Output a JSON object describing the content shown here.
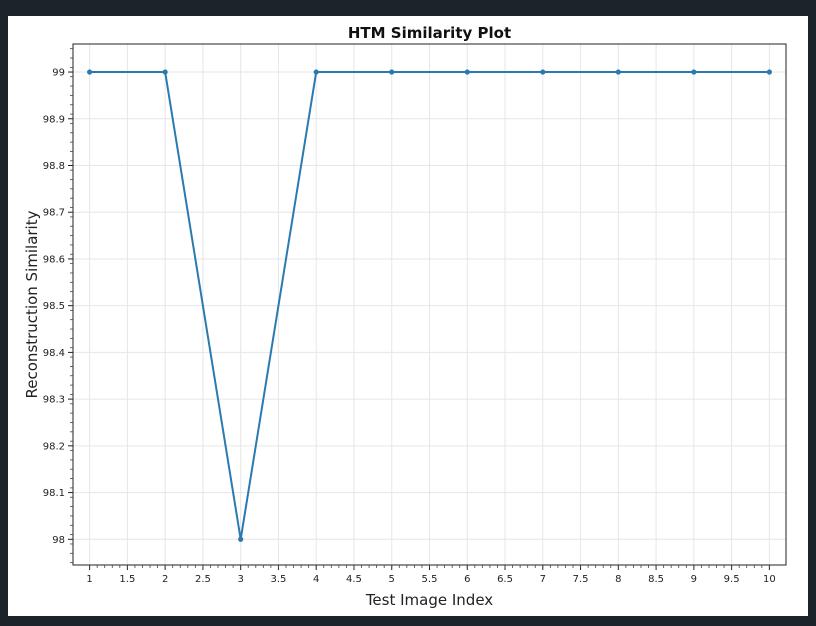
{
  "chart_data": {
    "type": "line",
    "title": "HTM Similarity Plot",
    "xlabel": "Test Image Index",
    "ylabel": "Reconstruction Similarity",
    "x": [
      1,
      2,
      3,
      4,
      5,
      6,
      7,
      8,
      9,
      10
    ],
    "series": [
      {
        "values": [
          99,
          99,
          98,
          99,
          99,
          99,
          99,
          99,
          99,
          99
        ]
      }
    ],
    "xlim": [
      0.78,
      10.22
    ],
    "ylim": [
      97.945,
      99.06
    ],
    "x_ticks": [
      "1",
      "1.5",
      "2",
      "2.5",
      "3",
      "3.5",
      "4",
      "4.5",
      "5",
      "5.5",
      "6",
      "6.5",
      "7",
      "7.5",
      "8",
      "8.5",
      "9",
      "9.5",
      "10"
    ],
    "x_tick_values": [
      1,
      1.5,
      2,
      2.5,
      3,
      3.5,
      4,
      4.5,
      5,
      5.5,
      6,
      6.5,
      7,
      7.5,
      8,
      8.5,
      9,
      9.5,
      10
    ],
    "y_ticks": [
      "98",
      "98.1",
      "98.2",
      "98.3",
      "98.4",
      "98.5",
      "98.6",
      "98.7",
      "98.8",
      "98.9",
      "99"
    ],
    "y_tick_values": [
      98,
      98.1,
      98.2,
      98.3,
      98.4,
      98.5,
      98.6,
      98.7,
      98.8,
      98.9,
      99
    ],
    "grid": true,
    "line_color": "#2a7ab0"
  }
}
